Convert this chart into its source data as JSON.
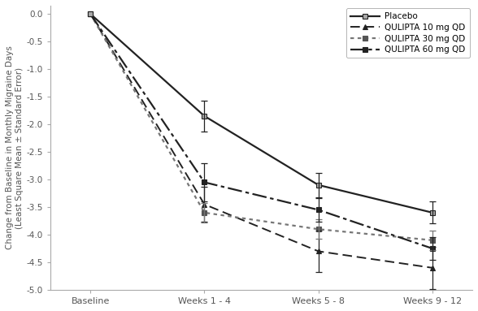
{
  "x_labels": [
    "Baseline",
    "Weeks 1 - 4",
    "Weeks 5 - 8",
    "Weeks 9 - 12"
  ],
  "x_positions": [
    0,
    1,
    2,
    3
  ],
  "series": [
    {
      "label": "Placebo",
      "values": [
        0.0,
        -1.85,
        -3.1,
        -3.6
      ],
      "errors": [
        0.0,
        0.28,
        0.22,
        0.2
      ],
      "color": "#222222",
      "linewidth": 1.6,
      "linestyle": "solid",
      "dashes": null,
      "marker": "s",
      "markersize": 5,
      "markerfacecolor": "#aaaaaa",
      "markeredgecolor": "#222222",
      "zorder": 3
    },
    {
      "label": "QULIPTA 10 mg QD",
      "values": [
        0.0,
        -3.45,
        -4.3,
        -4.6
      ],
      "errors": [
        0.0,
        0.32,
        0.38,
        0.38
      ],
      "color": "#222222",
      "linewidth": 1.4,
      "linestyle": "dashed",
      "dashes": [
        6,
        3
      ],
      "marker": "^",
      "markersize": 5,
      "markerfacecolor": "#222222",
      "markeredgecolor": "#222222",
      "zorder": 2
    },
    {
      "label": "QULIPTA 30 mg QD",
      "values": [
        0.0,
        -3.6,
        -3.9,
        -4.1
      ],
      "errors": [
        0.0,
        0.18,
        0.18,
        0.18
      ],
      "color": "#777777",
      "linewidth": 1.6,
      "linestyle": "dotted",
      "dashes": [
        2,
        2
      ],
      "marker": "s",
      "markersize": 5,
      "markerfacecolor": "#555555",
      "markeredgecolor": "#555555",
      "zorder": 2
    },
    {
      "label": "QULIPTA 60 mg QD",
      "values": [
        0.0,
        -3.05,
        -3.55,
        -4.25
      ],
      "errors": [
        0.0,
        0.35,
        0.22,
        0.2
      ],
      "color": "#222222",
      "linewidth": 1.6,
      "linestyle": "dashed",
      "dashes": [
        8,
        2,
        2,
        2
      ],
      "marker": "s",
      "markersize": 5,
      "markerfacecolor": "#222222",
      "markeredgecolor": "#222222",
      "zorder": 2
    }
  ],
  "ylim": [
    -5.0,
    0.15
  ],
  "yticks": [
    0.0,
    -0.5,
    -1.0,
    -1.5,
    -2.0,
    -2.5,
    -3.0,
    -3.5,
    -4.0,
    -4.5,
    -5.0
  ],
  "ylabel": "Change from Baseline in Monthly Migraine Days\n(Least Square Mean ± Standard Error)",
  "background_color": "#ffffff",
  "figure_size": [
    5.88,
    3.83
  ],
  "dpi": 100,
  "spine_color": "#aaaaaa",
  "tick_color": "#555555",
  "label_color": "#555555"
}
